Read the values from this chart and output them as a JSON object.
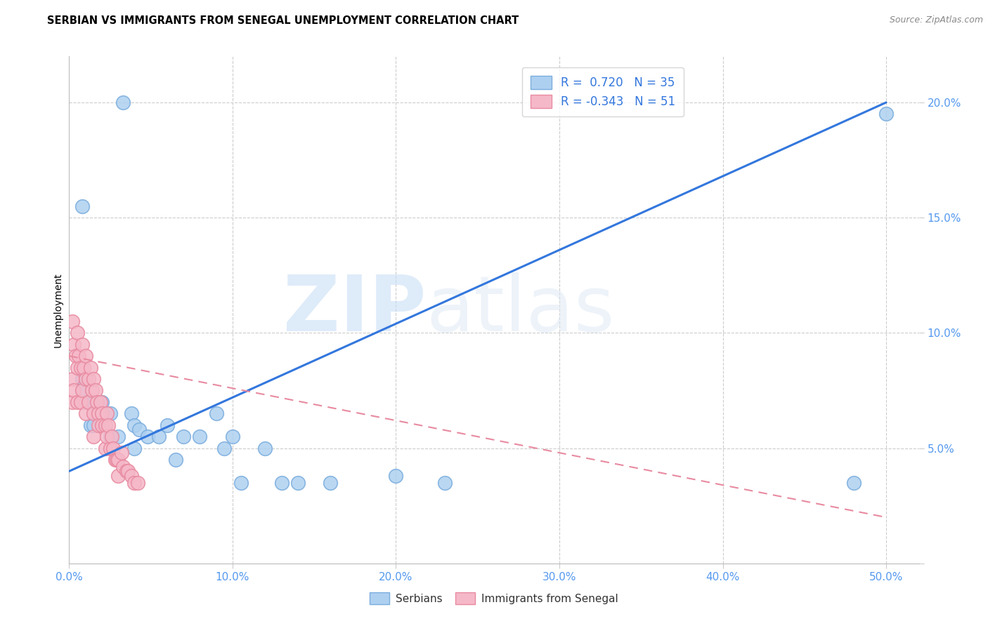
{
  "title": "SERBIAN VS IMMIGRANTS FROM SENEGAL UNEMPLOYMENT CORRELATION CHART",
  "source": "Source: ZipAtlas.com",
  "ylabel_label": "Unemployment",
  "xlim": [
    0.0,
    0.52
  ],
  "ylim": [
    0.0,
    0.22
  ],
  "x_ticks": [
    0.0,
    0.1,
    0.2,
    0.3,
    0.4,
    0.5
  ],
  "y_ticks": [
    0.0,
    0.05,
    0.1,
    0.15,
    0.2
  ],
  "x_tick_labels": [
    "0.0%",
    "10.0%",
    "20.0%",
    "30.0%",
    "40.0%",
    "50.0%"
  ],
  "y_tick_labels": [
    "",
    "5.0%",
    "10.0%",
    "15.0%",
    "20.0%"
  ],
  "serbian_color": "#aed0f0",
  "senegal_color": "#f5b8c8",
  "serbian_edge": "#7aaddd",
  "senegal_edge": "#e88aa0",
  "legend_R_serbian": " 0.720",
  "legend_N_serbian": "35",
  "legend_R_senegal": "-0.343",
  "legend_N_senegal": "51",
  "watermark_zip": "ZIP",
  "watermark_atlas": "atlas",
  "serbian_scatter_x": [
    0.033,
    0.008,
    0.008,
    0.008,
    0.01,
    0.013,
    0.015,
    0.015,
    0.02,
    0.02,
    0.025,
    0.025,
    0.03,
    0.038,
    0.04,
    0.04,
    0.043,
    0.048,
    0.055,
    0.06,
    0.065,
    0.07,
    0.08,
    0.09,
    0.095,
    0.1,
    0.105,
    0.12,
    0.13,
    0.14,
    0.16,
    0.2,
    0.23,
    0.48,
    0.5
  ],
  "serbian_scatter_y": [
    0.2,
    0.155,
    0.08,
    0.075,
    0.07,
    0.06,
    0.07,
    0.06,
    0.06,
    0.07,
    0.065,
    0.055,
    0.055,
    0.065,
    0.06,
    0.05,
    0.058,
    0.055,
    0.055,
    0.06,
    0.045,
    0.055,
    0.055,
    0.065,
    0.05,
    0.055,
    0.035,
    0.05,
    0.035,
    0.035,
    0.035,
    0.038,
    0.035,
    0.035,
    0.195
  ],
  "senegal_scatter_x": [
    0.002,
    0.002,
    0.002,
    0.003,
    0.003,
    0.004,
    0.005,
    0.005,
    0.005,
    0.006,
    0.007,
    0.007,
    0.008,
    0.008,
    0.009,
    0.01,
    0.01,
    0.01,
    0.012,
    0.012,
    0.013,
    0.014,
    0.015,
    0.015,
    0.015,
    0.016,
    0.017,
    0.018,
    0.018,
    0.019,
    0.02,
    0.02,
    0.022,
    0.022,
    0.023,
    0.023,
    0.024,
    0.025,
    0.026,
    0.027,
    0.028,
    0.029,
    0.03,
    0.03,
    0.032,
    0.033,
    0.035,
    0.036,
    0.038,
    0.04,
    0.042
  ],
  "senegal_scatter_y": [
    0.105,
    0.08,
    0.07,
    0.095,
    0.075,
    0.09,
    0.1,
    0.085,
    0.07,
    0.09,
    0.085,
    0.07,
    0.095,
    0.075,
    0.085,
    0.09,
    0.08,
    0.065,
    0.08,
    0.07,
    0.085,
    0.075,
    0.08,
    0.065,
    0.055,
    0.075,
    0.07,
    0.065,
    0.06,
    0.07,
    0.065,
    0.06,
    0.06,
    0.05,
    0.065,
    0.055,
    0.06,
    0.05,
    0.055,
    0.05,
    0.045,
    0.045,
    0.045,
    0.038,
    0.048,
    0.042,
    0.04,
    0.04,
    0.038,
    0.035,
    0.035
  ],
  "blue_line_x": [
    0.0,
    0.5
  ],
  "blue_line_y": [
    0.04,
    0.2
  ],
  "pink_line_x": [
    0.0,
    0.5
  ],
  "pink_line_y": [
    0.09,
    0.02
  ],
  "grid_color": "#cccccc",
  "title_fontsize": 10.5,
  "axis_tick_color": "#5599ee",
  "axis_tick_fontsize": 11,
  "legend_text_color": "#5599ee",
  "legend_R_color": "#3377dd",
  "source_color": "#888888"
}
